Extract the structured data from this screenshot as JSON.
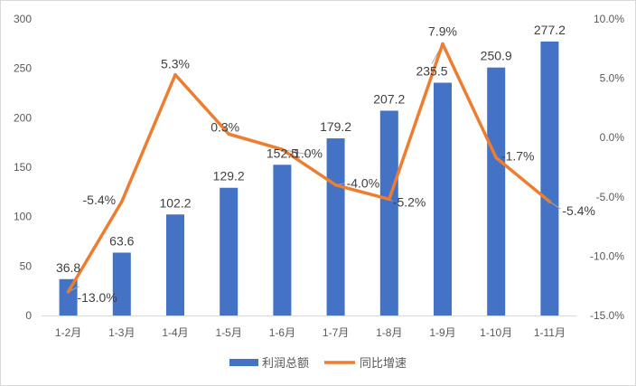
{
  "chart_data": {
    "type": "bar+line",
    "categories": [
      "1-2月",
      "1-3月",
      "1-4月",
      "1-5月",
      "1-6月",
      "1-7月",
      "1-8月",
      "1-9月",
      "1-10月",
      "1-11月"
    ],
    "series": [
      {
        "name": "利润总额",
        "type": "bar",
        "axis": "left",
        "color": "#4472c4",
        "values": [
          36.8,
          63.6,
          102.2,
          129.2,
          152.5,
          179.2,
          207.2,
          235.5,
          250.9,
          277.2
        ],
        "labels": [
          "36.8",
          "63.6",
          "102.2",
          "129.2",
          "152.5",
          "179.2",
          "207.2",
          "235.5",
          "250.9",
          "277.2"
        ]
      },
      {
        "name": "同比增速",
        "type": "line",
        "axis": "right",
        "color": "#ed7d31",
        "values": [
          -13.0,
          -5.4,
          5.3,
          0.3,
          -1.0,
          -4.0,
          -5.2,
          7.9,
          -1.7,
          -5.4
        ],
        "labels": [
          "-13.0%",
          "-5.4%",
          "5.3%",
          "0.3%",
          "-1.0%",
          "-4.0%",
          "-5.2%",
          "7.9%",
          "-1.7%",
          "-5.4%"
        ]
      }
    ],
    "y_left": {
      "lim": [
        0,
        300
      ],
      "ticks": [
        0,
        50,
        100,
        150,
        200,
        250,
        300
      ],
      "tick_labels": [
        "0",
        "50",
        "100",
        "150",
        "200",
        "250",
        "300"
      ]
    },
    "y_right": {
      "lim": [
        -15,
        10
      ],
      "ticks": [
        -15,
        -10,
        -5,
        0,
        5,
        10
      ],
      "tick_labels": [
        "-15.0%",
        "-10.0%",
        "-5.0%",
        "0.0%",
        "5.0%",
        "10.0%"
      ]
    },
    "grid": false,
    "legend_position": "bottom"
  }
}
